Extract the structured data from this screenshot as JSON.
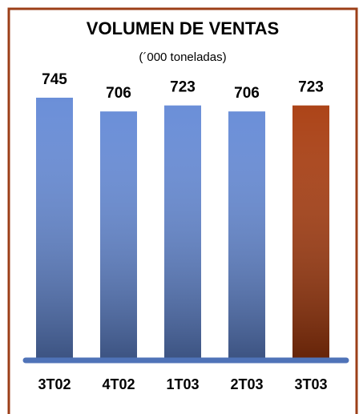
{
  "chart_data": {
    "type": "bar",
    "title": "VOLUMEN DE VENTAS",
    "subtitle": "(´000 toneladas)",
    "categories": [
      "3T02",
      "4T02",
      "1T03",
      "2T03",
      "3T03"
    ],
    "values": [
      745,
      706,
      723,
      706,
      723
    ],
    "colors": [
      "#6389d6",
      "#6389d6",
      "#6389d6",
      "#6389d6",
      "#a83a0c"
    ]
  }
}
